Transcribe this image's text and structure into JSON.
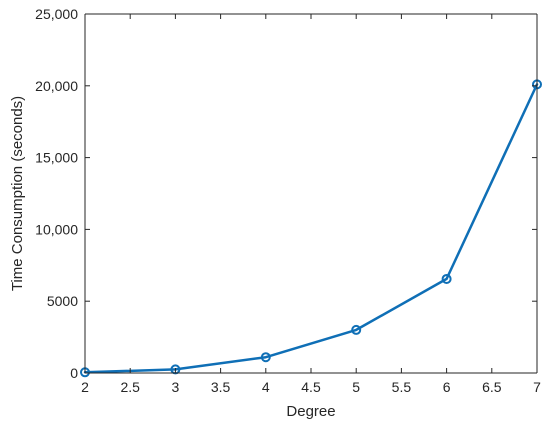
{
  "chart_data": {
    "type": "line",
    "title": "",
    "xlabel": "Degree",
    "ylabel": "Time Consumption (seconds)",
    "xlim": [
      2,
      7
    ],
    "ylim": [
      0,
      25000
    ],
    "x_ticks": [
      2,
      2.5,
      3,
      3.5,
      4,
      4.5,
      5,
      5.5,
      6,
      6.5,
      7
    ],
    "x_tick_labels": [
      "2",
      "2.5",
      "3",
      "3.5",
      "4",
      "4.5",
      "5",
      "5.5",
      "6",
      "6.5",
      "7"
    ],
    "y_ticks": [
      0,
      5000,
      10000,
      15000,
      20000,
      25000
    ],
    "y_tick_labels": [
      "0",
      "5000",
      "10,000",
      "15,000",
      "20,000",
      "25,000"
    ],
    "grid": false,
    "series": [
      {
        "x": [
          2,
          3,
          4,
          5,
          6,
          7
        ],
        "values": [
          50,
          250,
          1100,
          3000,
          6550,
          20100
        ],
        "color": "#0f6fb6",
        "marker": "circle"
      }
    ]
  }
}
